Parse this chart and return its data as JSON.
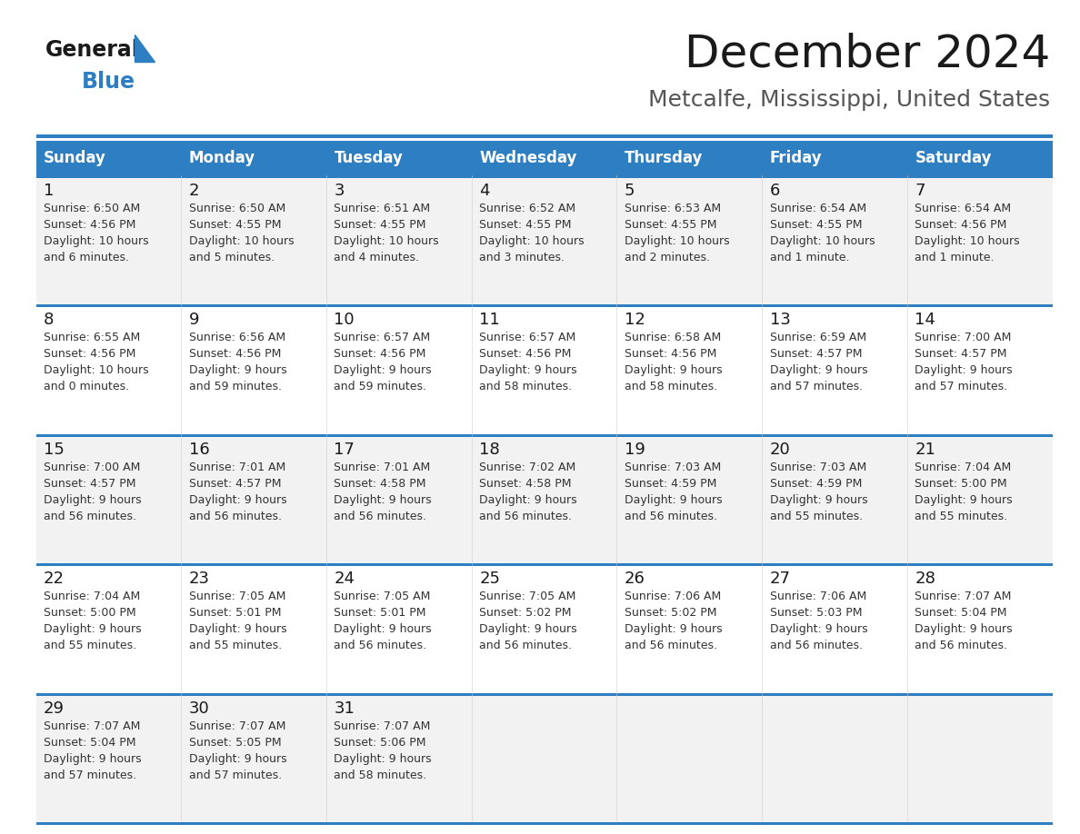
{
  "title": "December 2024",
  "subtitle": "Metcalfe, Mississippi, United States",
  "header_bg": "#2E7EC2",
  "header_text_color": "#FFFFFF",
  "days_of_week": [
    "Sunday",
    "Monday",
    "Tuesday",
    "Wednesday",
    "Thursday",
    "Friday",
    "Saturday"
  ],
  "cell_bg_even": "#F2F2F2",
  "cell_bg_odd": "#FFFFFF",
  "divider_color": "#2E7EC2",
  "text_color": "#333333",
  "calendar_data": [
    [
      {
        "day": "1",
        "sunrise": "6:50 AM",
        "sunset": "4:56 PM",
        "daylight_line1": "Daylight: 10 hours",
        "daylight_line2": "and 6 minutes."
      },
      {
        "day": "2",
        "sunrise": "6:50 AM",
        "sunset": "4:55 PM",
        "daylight_line1": "Daylight: 10 hours",
        "daylight_line2": "and 5 minutes."
      },
      {
        "day": "3",
        "sunrise": "6:51 AM",
        "sunset": "4:55 PM",
        "daylight_line1": "Daylight: 10 hours",
        "daylight_line2": "and 4 minutes."
      },
      {
        "day": "4",
        "sunrise": "6:52 AM",
        "sunset": "4:55 PM",
        "daylight_line1": "Daylight: 10 hours",
        "daylight_line2": "and 3 minutes."
      },
      {
        "day": "5",
        "sunrise": "6:53 AM",
        "sunset": "4:55 PM",
        "daylight_line1": "Daylight: 10 hours",
        "daylight_line2": "and 2 minutes."
      },
      {
        "day": "6",
        "sunrise": "6:54 AM",
        "sunset": "4:55 PM",
        "daylight_line1": "Daylight: 10 hours",
        "daylight_line2": "and 1 minute."
      },
      {
        "day": "7",
        "sunrise": "6:54 AM",
        "sunset": "4:56 PM",
        "daylight_line1": "Daylight: 10 hours",
        "daylight_line2": "and 1 minute."
      }
    ],
    [
      {
        "day": "8",
        "sunrise": "6:55 AM",
        "sunset": "4:56 PM",
        "daylight_line1": "Daylight: 10 hours",
        "daylight_line2": "and 0 minutes."
      },
      {
        "day": "9",
        "sunrise": "6:56 AM",
        "sunset": "4:56 PM",
        "daylight_line1": "Daylight: 9 hours",
        "daylight_line2": "and 59 minutes."
      },
      {
        "day": "10",
        "sunrise": "6:57 AM",
        "sunset": "4:56 PM",
        "daylight_line1": "Daylight: 9 hours",
        "daylight_line2": "and 59 minutes."
      },
      {
        "day": "11",
        "sunrise": "6:57 AM",
        "sunset": "4:56 PM",
        "daylight_line1": "Daylight: 9 hours",
        "daylight_line2": "and 58 minutes."
      },
      {
        "day": "12",
        "sunrise": "6:58 AM",
        "sunset": "4:56 PM",
        "daylight_line1": "Daylight: 9 hours",
        "daylight_line2": "and 58 minutes."
      },
      {
        "day": "13",
        "sunrise": "6:59 AM",
        "sunset": "4:57 PM",
        "daylight_line1": "Daylight: 9 hours",
        "daylight_line2": "and 57 minutes."
      },
      {
        "day": "14",
        "sunrise": "7:00 AM",
        "sunset": "4:57 PM",
        "daylight_line1": "Daylight: 9 hours",
        "daylight_line2": "and 57 minutes."
      }
    ],
    [
      {
        "day": "15",
        "sunrise": "7:00 AM",
        "sunset": "4:57 PM",
        "daylight_line1": "Daylight: 9 hours",
        "daylight_line2": "and 56 minutes."
      },
      {
        "day": "16",
        "sunrise": "7:01 AM",
        "sunset": "4:57 PM",
        "daylight_line1": "Daylight: 9 hours",
        "daylight_line2": "and 56 minutes."
      },
      {
        "day": "17",
        "sunrise": "7:01 AM",
        "sunset": "4:58 PM",
        "daylight_line1": "Daylight: 9 hours",
        "daylight_line2": "and 56 minutes."
      },
      {
        "day": "18",
        "sunrise": "7:02 AM",
        "sunset": "4:58 PM",
        "daylight_line1": "Daylight: 9 hours",
        "daylight_line2": "and 56 minutes."
      },
      {
        "day": "19",
        "sunrise": "7:03 AM",
        "sunset": "4:59 PM",
        "daylight_line1": "Daylight: 9 hours",
        "daylight_line2": "and 56 minutes."
      },
      {
        "day": "20",
        "sunrise": "7:03 AM",
        "sunset": "4:59 PM",
        "daylight_line1": "Daylight: 9 hours",
        "daylight_line2": "and 55 minutes."
      },
      {
        "day": "21",
        "sunrise": "7:04 AM",
        "sunset": "5:00 PM",
        "daylight_line1": "Daylight: 9 hours",
        "daylight_line2": "and 55 minutes."
      }
    ],
    [
      {
        "day": "22",
        "sunrise": "7:04 AM",
        "sunset": "5:00 PM",
        "daylight_line1": "Daylight: 9 hours",
        "daylight_line2": "and 55 minutes."
      },
      {
        "day": "23",
        "sunrise": "7:05 AM",
        "sunset": "5:01 PM",
        "daylight_line1": "Daylight: 9 hours",
        "daylight_line2": "and 55 minutes."
      },
      {
        "day": "24",
        "sunrise": "7:05 AM",
        "sunset": "5:01 PM",
        "daylight_line1": "Daylight: 9 hours",
        "daylight_line2": "and 56 minutes."
      },
      {
        "day": "25",
        "sunrise": "7:05 AM",
        "sunset": "5:02 PM",
        "daylight_line1": "Daylight: 9 hours",
        "daylight_line2": "and 56 minutes."
      },
      {
        "day": "26",
        "sunrise": "7:06 AM",
        "sunset": "5:02 PM",
        "daylight_line1": "Daylight: 9 hours",
        "daylight_line2": "and 56 minutes."
      },
      {
        "day": "27",
        "sunrise": "7:06 AM",
        "sunset": "5:03 PM",
        "daylight_line1": "Daylight: 9 hours",
        "daylight_line2": "and 56 minutes."
      },
      {
        "day": "28",
        "sunrise": "7:07 AM",
        "sunset": "5:04 PM",
        "daylight_line1": "Daylight: 9 hours",
        "daylight_line2": "and 56 minutes."
      }
    ],
    [
      {
        "day": "29",
        "sunrise": "7:07 AM",
        "sunset": "5:04 PM",
        "daylight_line1": "Daylight: 9 hours",
        "daylight_line2": "and 57 minutes."
      },
      {
        "day": "30",
        "sunrise": "7:07 AM",
        "sunset": "5:05 PM",
        "daylight_line1": "Daylight: 9 hours",
        "daylight_line2": "and 57 minutes."
      },
      {
        "day": "31",
        "sunrise": "7:07 AM",
        "sunset": "5:06 PM",
        "daylight_line1": "Daylight: 9 hours",
        "daylight_line2": "and 58 minutes."
      },
      null,
      null,
      null,
      null
    ]
  ]
}
